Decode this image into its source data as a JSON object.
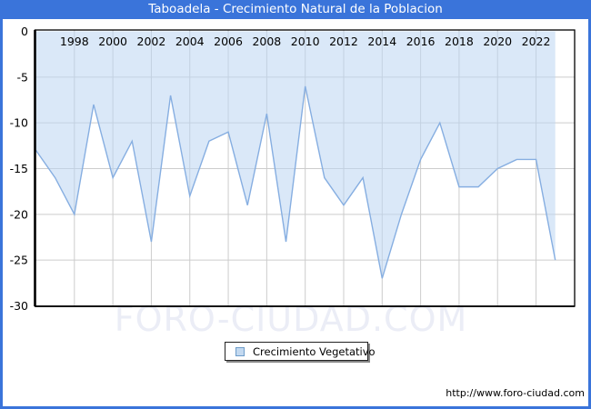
{
  "header": {
    "title": "Taboadela - Crecimiento Natural de la Poblacion",
    "bar_color": "#3a74da",
    "text_color": "#ffffff"
  },
  "chart_data": {
    "type": "area",
    "title": "Taboadela - Crecimiento Natural de la Poblacion",
    "series_name": "Crecimiento Vegetativo",
    "x": [
      1996,
      1997,
      1998,
      1999,
      2000,
      2001,
      2002,
      2003,
      2004,
      2005,
      2006,
      2007,
      2008,
      2009,
      2010,
      2011,
      2012,
      2013,
      2014,
      2015,
      2016,
      2017,
      2018,
      2019,
      2020,
      2021,
      2022,
      2023
    ],
    "values": [
      -13,
      -16,
      -20,
      -8,
      -16,
      -12,
      -23,
      -7,
      -18,
      -12,
      -11,
      -19,
      -9,
      -23,
      -6,
      -16,
      -19,
      -16,
      -27,
      -20,
      -14,
      -10,
      -17,
      -17,
      -15,
      -14,
      -14,
      -25
    ],
    "xtick_labels": [
      "1998",
      "2000",
      "2002",
      "2004",
      "2006",
      "2008",
      "2010",
      "2012",
      "2014",
      "2016",
      "2018",
      "2020",
      "2022"
    ],
    "yticks": [
      0,
      -5,
      -10,
      -15,
      -20,
      -25,
      -30
    ],
    "ylim": [
      -30,
      0
    ],
    "grid": true,
    "fill_to": 0,
    "line_color": "#86aee1",
    "fill_color": "#bcd6f2",
    "grid_color": "#cccccc",
    "axis_color": "#000000",
    "legend_position": "bottom-center"
  },
  "legend": {
    "label": "Crecimiento Vegetativo",
    "swatch_fill": "#c3d9f0",
    "swatch_border": "#6d9cc9"
  },
  "watermark": {
    "text": "FORO-CIUDAD.COM"
  },
  "footer": {
    "url": "http://www.foro-ciudad.com"
  }
}
